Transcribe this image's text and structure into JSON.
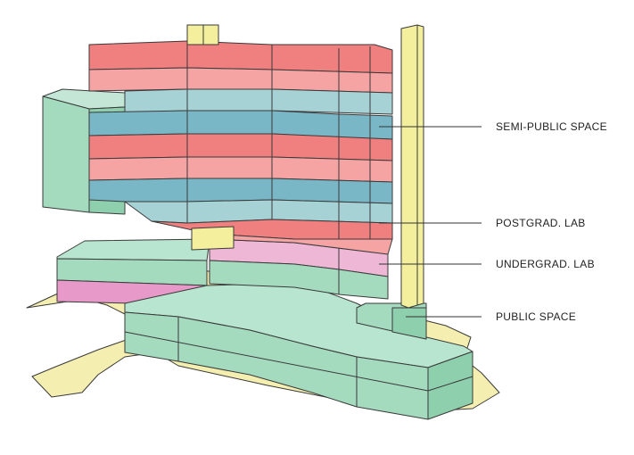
{
  "labels": {
    "semi_public": "SEMI-PUBLIC SPACE",
    "postgrad_lab": "POSTGRAD. LAB",
    "undergrad_lab": "UNDERGRAD. LAB",
    "public_space": "PUBLIC SPACE"
  },
  "colors": {
    "public": "#f4efb0",
    "green": "#a4dbbf",
    "green_dark": "#8ecfae",
    "teal": "#7ab7c6",
    "teal_light": "#a6d2d6",
    "red": "#f07f7f",
    "red_light": "#f5a3a3",
    "pink": "#e79ac9",
    "pink_light": "#efb7d6",
    "yellow": "#f3ef9d"
  }
}
